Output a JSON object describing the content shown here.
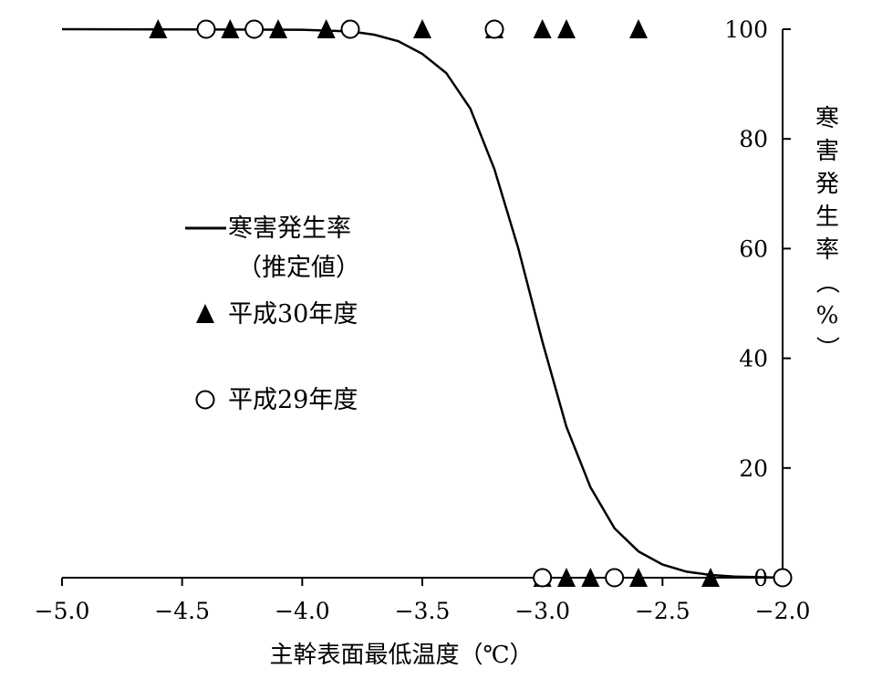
{
  "chart_data": {
    "type": "scatter",
    "title": "",
    "xlabel": "主幹表面最低温度（℃）",
    "ylabel": "寒害発生率（%）",
    "xlim": [
      -5.0,
      -2.0
    ],
    "ylim": [
      0,
      100
    ],
    "x_tick_labels": [
      "-5.0",
      "-4.5",
      "-4.0",
      "-3.5",
      "-3.0",
      "-2.5",
      "-2.0"
    ],
    "y_tick_labels": [
      "0",
      "20",
      "40",
      "60",
      "80",
      "100"
    ],
    "y_axis_position": "right",
    "grid": false,
    "legend_position": "center-left",
    "legend": {
      "line_label_1": "寒害発生率",
      "line_label_2": "（推定値）",
      "h30_label": "平成30年度",
      "h29_label": "平成29年度"
    },
    "series": [
      {
        "name": "寒害発生率（推定値）",
        "kind": "line",
        "color": "#000000",
        "points": [
          [
            -5.0,
            100
          ],
          [
            -4.0,
            99.9
          ],
          [
            -3.8,
            99.6
          ],
          [
            -3.7,
            99.0
          ],
          [
            -3.6,
            97.8
          ],
          [
            -3.5,
            95.5
          ],
          [
            -3.4,
            92.0
          ],
          [
            -3.3,
            85.5
          ],
          [
            -3.2,
            74.5
          ],
          [
            -3.1,
            60.0
          ],
          [
            -3.0,
            43.0
          ],
          [
            -2.9,
            27.5
          ],
          [
            -2.8,
            16.5
          ],
          [
            -2.7,
            9.0
          ],
          [
            -2.6,
            4.8
          ],
          [
            -2.5,
            2.4
          ],
          [
            -2.4,
            1.1
          ],
          [
            -2.3,
            0.5
          ],
          [
            -2.2,
            0.2
          ],
          [
            -2.0,
            0.0
          ]
        ]
      },
      {
        "name": "平成30年度",
        "kind": "triangle",
        "color": "#000000",
        "points": [
          [
            -4.6,
            100
          ],
          [
            -4.3,
            100
          ],
          [
            -4.1,
            100
          ],
          [
            -3.9,
            100
          ],
          [
            -3.5,
            100
          ],
          [
            -3.2,
            100
          ],
          [
            -3.0,
            100
          ],
          [
            -2.9,
            100
          ],
          [
            -2.6,
            100
          ],
          [
            -3.0,
            0
          ],
          [
            -2.9,
            0
          ],
          [
            -2.8,
            0
          ],
          [
            -2.6,
            0
          ],
          [
            -2.3,
            0
          ]
        ]
      },
      {
        "name": "平成29年度",
        "kind": "circle",
        "color": "#000000",
        "points": [
          [
            -4.4,
            100
          ],
          [
            -4.2,
            100
          ],
          [
            -3.8,
            100
          ],
          [
            -3.2,
            100
          ],
          [
            -3.0,
            0
          ],
          [
            -2.7,
            0
          ],
          [
            -2.0,
            0
          ]
        ]
      }
    ]
  }
}
